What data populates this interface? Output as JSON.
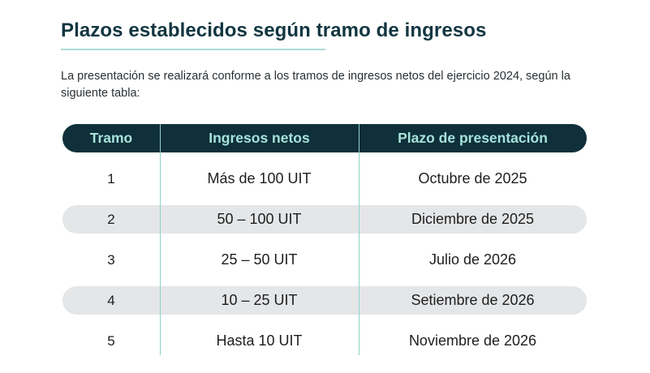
{
  "heading": {
    "title": "Plazos establecidos según tramo de ingresos"
  },
  "intro": "La presentación se realizará conforme a los tramos de ingresos netos del ejercicio 2024, según la siguiente tabla:",
  "table": {
    "headers": [
      "Tramo",
      "Ingresos netos",
      "Plazo de presentación"
    ],
    "rows": [
      [
        "1",
        "Más de 100 UIT",
        "Octubre de 2025"
      ],
      [
        "2",
        "50 – 100 UIT",
        "Diciembre de 2025"
      ],
      [
        "3",
        "25 – 50 UIT",
        "Julio de 2026"
      ],
      [
        "4",
        "10 – 25 UIT",
        "Setiembre de 2026"
      ],
      [
        "5",
        "Hasta 10 UIT",
        "Noviembre de 2026"
      ]
    ]
  },
  "colors": {
    "title": "#123641",
    "header_bg": "#0f2f3b",
    "header_text": "#a6e3da",
    "row_shade": "#e4e6e8",
    "divider": "#8fd0c7"
  }
}
